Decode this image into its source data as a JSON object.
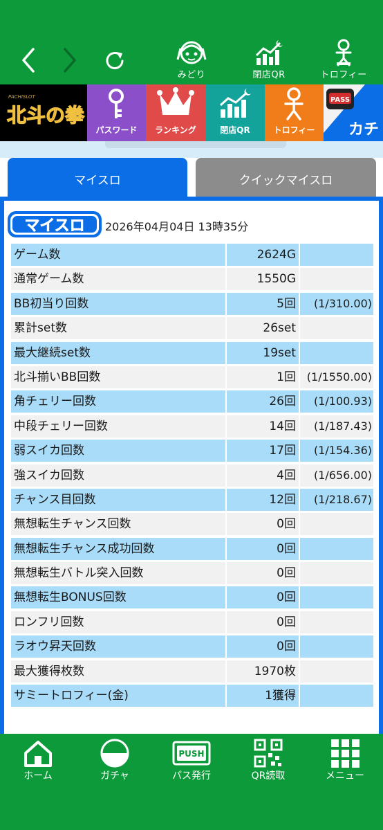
{
  "top_nav": {
    "items": [
      {
        "label": "みどり"
      },
      {
        "label": "閉店QR"
      },
      {
        "label": "トロフィー"
      }
    ]
  },
  "banner": {
    "logo_text": "北斗の拳",
    "items": [
      {
        "label": "パスワード"
      },
      {
        "label": "ランキング"
      },
      {
        "label": "閉店QR"
      },
      {
        "label": "トロフィー"
      }
    ],
    "pass_text": "PASS",
    "kachi_text": "カチ"
  },
  "tabs": [
    {
      "label": "マイスロ",
      "active": true
    },
    {
      "label": "クイックマイスロ",
      "active": false
    }
  ],
  "myslo": {
    "logo_text": "マイスロ",
    "datetime": "2026年04月04日 13時35分"
  },
  "stats": [
    {
      "label": "ゲーム数",
      "value": "2624G",
      "rate": ""
    },
    {
      "label": "通常ゲーム数",
      "value": "1550G",
      "rate": ""
    },
    {
      "label": "BB初当り回数",
      "value": "5回",
      "rate": "(1/310.00)"
    },
    {
      "label": "累計set数",
      "value": "26set",
      "rate": ""
    },
    {
      "label": "最大継続set数",
      "value": "19set",
      "rate": ""
    },
    {
      "label": "北斗揃いBB回数",
      "value": "1回",
      "rate": "(1/1550.00)"
    },
    {
      "label": "角チェリー回数",
      "value": "26回",
      "rate": "(1/100.93)"
    },
    {
      "label": "中段チェリー回数",
      "value": "14回",
      "rate": "(1/187.43)"
    },
    {
      "label": "弱スイカ回数",
      "value": "17回",
      "rate": "(1/154.36)"
    },
    {
      "label": "強スイカ回数",
      "value": "4回",
      "rate": "(1/656.00)"
    },
    {
      "label": "チャンス目回数",
      "value": "12回",
      "rate": "(1/218.67)"
    },
    {
      "label": "無想転生チャンス回数",
      "value": "0回",
      "rate": ""
    },
    {
      "label": "無想転生チャンス成功回数",
      "value": "0回",
      "rate": ""
    },
    {
      "label": "無想転生バトル突入回数",
      "value": "0回",
      "rate": ""
    },
    {
      "label": "無想転生BONUS回数",
      "value": "0回",
      "rate": ""
    },
    {
      "label": "ロンフリ回数",
      "value": "0回",
      "rate": ""
    },
    {
      "label": "ラオウ昇天回数",
      "value": "0回",
      "rate": ""
    },
    {
      "label": "最大獲得枚数",
      "value": "1970枚",
      "rate": ""
    },
    {
      "label": "サミートロフィー(金)",
      "value": "1獲得",
      "rate": ""
    }
  ],
  "bottom_nav": {
    "items": [
      {
        "label": "ホーム"
      },
      {
        "label": "ガチャ"
      },
      {
        "label": "パス発行"
      },
      {
        "label": "QR読取"
      },
      {
        "label": "メニュー"
      }
    ],
    "push_text": "PUSH"
  },
  "colors": {
    "brand_green": "#0d9a3a",
    "tab_blue": "#0b6ee6",
    "row_blue": "#a9dcf9",
    "row_gray": "#f1f1f1"
  }
}
